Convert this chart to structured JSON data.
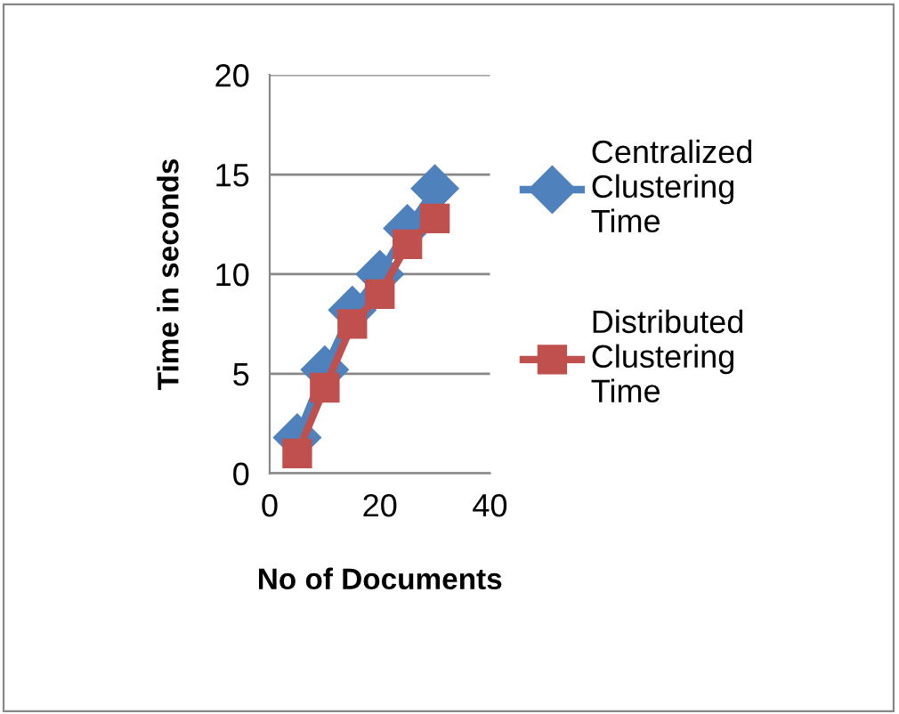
{
  "chart_data": {
    "type": "line",
    "xlabel": "No of Documents",
    "ylabel": "Time in seconds",
    "x": [
      5,
      10,
      15,
      20,
      25,
      30
    ],
    "series": [
      {
        "name": "Centralized\nClustering\nTime",
        "color": "#4f81bd",
        "marker": "diamond",
        "values": [
          1.8,
          5.2,
          8.2,
          10,
          12.3,
          14.3
        ]
      },
      {
        "name": "Distributed\nClustering\nTime",
        "color": "#c0504d",
        "marker": "square",
        "values": [
          1,
          4.3,
          7.5,
          9,
          11.5,
          12.8
        ]
      }
    ],
    "xlim": [
      0,
      40
    ],
    "xticks": [
      0,
      20,
      40
    ],
    "ylim": [
      0,
      20
    ],
    "yticks": [
      0,
      5,
      10,
      15,
      20
    ],
    "grid": "y",
    "legend": "right"
  }
}
